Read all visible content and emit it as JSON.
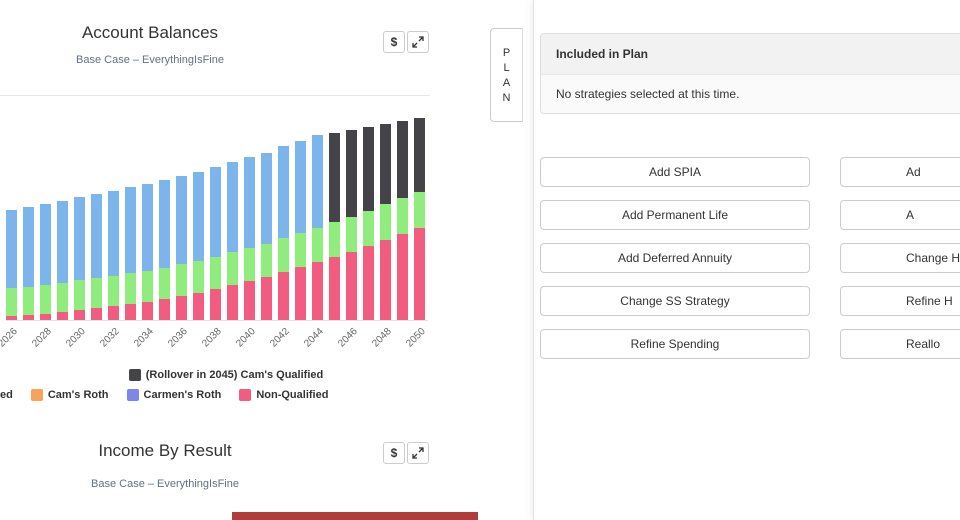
{
  "account_balances": {
    "title": "Account Balances",
    "subtitle": "Base Case – EverythingIsFine",
    "toolbar": {
      "dollar_label": "$"
    },
    "legend_rows": [
      [
        {
          "label": "(Rollover in 2045) Cam's Qualified",
          "color": "#434348"
        }
      ],
      [
        {
          "label": "ed",
          "color": ""
        },
        {
          "label": "Cam's Roth",
          "color": "#f7a35c"
        },
        {
          "label": "Carmen's Roth",
          "color": "#8085e9"
        },
        {
          "label": "Non-Qualified",
          "color": "#f15c80"
        }
      ]
    ]
  },
  "chart_data": {
    "type": "bar",
    "stacked": true,
    "title": "Account Balances",
    "subtitle": "Base Case – EverythingIsFine",
    "categories": [
      2026,
      2027,
      2028,
      2029,
      2030,
      2031,
      2032,
      2033,
      2034,
      2035,
      2036,
      2037,
      2038,
      2039,
      2040,
      2041,
      2042,
      2043,
      2044,
      2045,
      2046,
      2047,
      2048,
      2049,
      2050
    ],
    "x_tick_step": 2,
    "ylabel": "",
    "ylim": [
      0,
      225
    ],
    "note": "y-axis tick labels are cropped out of frame; values are relative estimates",
    "series": [
      {
        "name": "Non-Qualified",
        "color": "#f15c80",
        "values": [
          4,
          5,
          6,
          8,
          10,
          12,
          14,
          16,
          18,
          21,
          24,
          27,
          31,
          35,
          39,
          43,
          48,
          53,
          58,
          63,
          68,
          74,
          80,
          86,
          92
        ]
      },
      {
        "name": "(cropped legend label ending in 'ed')",
        "color": "#90ed7d",
        "values": [
          28,
          28,
          29,
          29,
          30,
          30,
          30,
          31,
          31,
          31,
          32,
          32,
          32,
          33,
          33,
          33,
          34,
          34,
          34,
          35,
          35,
          35,
          36,
          36,
          36
        ]
      },
      {
        "name": "(cropped legend label)",
        "color": "#7cb5ec",
        "values": [
          78,
          80,
          81,
          82,
          83,
          84,
          85,
          86,
          87,
          88,
          88,
          89,
          90,
          90,
          91,
          91,
          92,
          92,
          93,
          0,
          0,
          0,
          0,
          0,
          0
        ]
      },
      {
        "name": "(Rollover in 2045) Cam's Qualified",
        "color": "#434348",
        "values": [
          0,
          0,
          0,
          0,
          0,
          0,
          0,
          0,
          0,
          0,
          0,
          0,
          0,
          0,
          0,
          0,
          0,
          0,
          0,
          89,
          87,
          84,
          80,
          77,
          74
        ]
      }
    ],
    "legend_position": "bottom"
  },
  "income_by_result": {
    "title": "Income By Result",
    "subtitle": "Base Case – EverythingIsFine",
    "toolbar": {
      "dollar_label": "$"
    },
    "partial_bar_color": "#b23b3b"
  },
  "plan_panel": {
    "tab_letters": [
      "P",
      "L",
      "A",
      "N"
    ],
    "card": {
      "header": "Included in Plan",
      "body": "No strategies selected at this time."
    },
    "left_buttons": [
      "Add SPIA",
      "Add Permanent Life",
      "Add Deferred Annuity",
      "Change SS Strategy",
      "Refine Spending"
    ],
    "right_buttons_visible_fragments": [
      "Ad",
      "A",
      "Change H",
      "Refine H",
      "Reallo"
    ]
  }
}
